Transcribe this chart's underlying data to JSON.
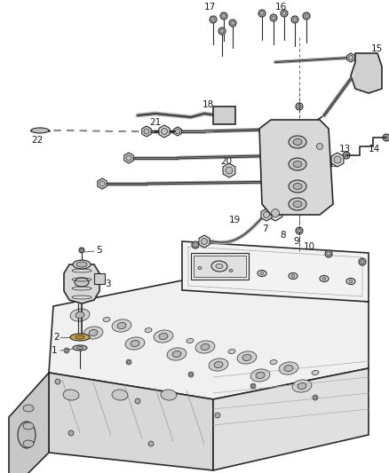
{
  "bg": "#ffffff",
  "lc": "#2a2a2a",
  "lc2": "#1a1a1a",
  "fig_w": 4.38,
  "fig_h": 5.33,
  "dpi": 100,
  "label_fs": 7.5
}
